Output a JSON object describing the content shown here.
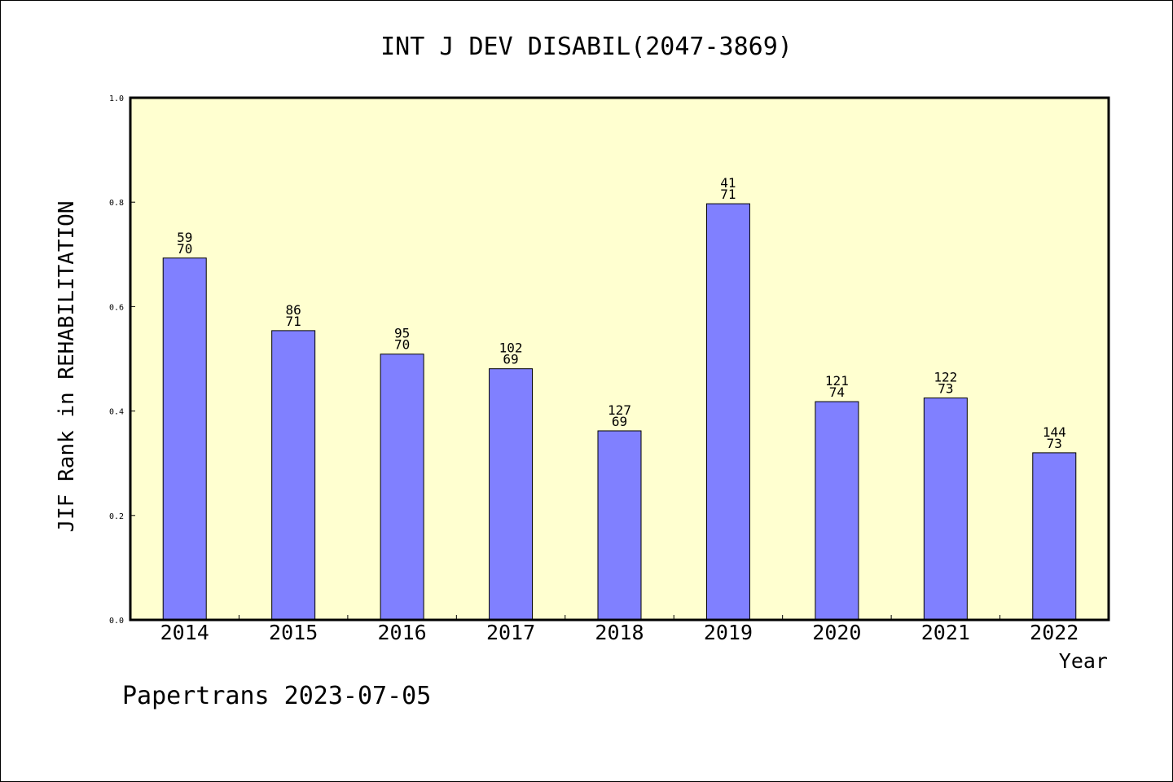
{
  "chart_data": {
    "type": "bar",
    "title": "INT J DEV DISABIL(2047-3869)",
    "xlabel": "Year",
    "ylabel": "JIF Rank in REHABILITATION",
    "footer": "Papertrans 2023-07-05",
    "ylim": [
      0,
      1.0
    ],
    "yticks": [
      "0.0",
      "0.2",
      "0.4",
      "0.6",
      "0.8",
      "1.0"
    ],
    "ytick_values": [
      0.0,
      0.2,
      0.4,
      0.6,
      0.8,
      1.0
    ],
    "grid": false,
    "categories": [
      "2014",
      "2015",
      "2016",
      "2017",
      "2018",
      "2019",
      "2020",
      "2021",
      "2022"
    ],
    "values": [
      0.693,
      0.554,
      0.509,
      0.481,
      0.362,
      0.797,
      0.418,
      0.425,
      0.32
    ],
    "rank_labels": [
      "59",
      "86",
      "95",
      "102",
      "127",
      "41",
      "121",
      "122",
      "144"
    ],
    "count_labels": [
      "70",
      "71",
      "70",
      "69",
      "69",
      "71",
      "74",
      "73",
      "73"
    ],
    "colors": {
      "bar": "#8080ff",
      "plot_background": "#ffffd0",
      "axis": "#000000"
    }
  }
}
